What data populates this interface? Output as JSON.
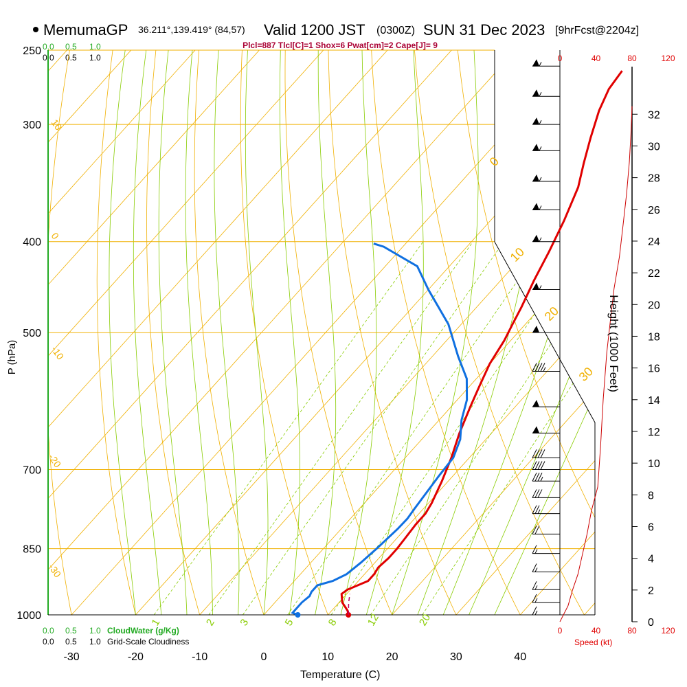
{
  "header": {
    "model": "MemumaGP",
    "location": "36.211°,139.419° (84,57)",
    "valid": "Valid 1200 JST",
    "utc": "(0300Z)",
    "date": "SUN 31 Dec 2023",
    "forecast": "[9hrFcst@2204z]",
    "indices": "Plcl=887 Tlcl[C]=1 Shox=6 Pwat[cm]=2 Cape[J]= 9"
  },
  "colors": {
    "isobar": "#f0b000",
    "mixing": "#88cc00",
    "temperature": "#e00000",
    "dewpoint": "#1070e0",
    "height": "#cc0000",
    "cloud": "#22aa22"
  },
  "labels": {
    "cloud_top_scale": [
      "0.0",
      "0.5",
      "1.0"
    ],
    "cloud_bottom_scale": [
      "0.0",
      "0.5",
      "1.0"
    ],
    "cloudwater_label": "CloudWater (g/Kg)",
    "cloudiness_label": "Grid-Scale Cloudiness",
    "speed_ticks": [
      "0",
      "40",
      "80",
      "120"
    ],
    "speed_label": "Speed (kt)",
    "height_label": "Height (1000 Feet)"
  },
  "chart_data": {
    "type": "line",
    "title": "",
    "xlabel": "Temperature (C)",
    "ylabel": "P (hPa)",
    "xlim": [
      -35,
      46
    ],
    "x_ticks": [
      -30,
      -20,
      -10,
      0,
      10,
      20,
      30,
      40
    ],
    "pressure_ticks": [
      250,
      300,
      400,
      500,
      700,
      850,
      1000
    ],
    "height_ticks": [
      0,
      2,
      4,
      6,
      8,
      10,
      12,
      14,
      16,
      18,
      20,
      22,
      24,
      26,
      28,
      30,
      32
    ],
    "isotherm_labels": [
      -30,
      -20,
      -10,
      0,
      10,
      20,
      30
    ],
    "dry_adiabat_labels": [
      10,
      0,
      -10,
      -20,
      -30
    ],
    "mixing_ratio_labels": [
      "1",
      "2",
      "3",
      "5",
      "8",
      "12",
      "20"
    ],
    "series": [
      {
        "name": "",
        "color": "#e00000",
        "points": [
          [
            13.2,
            1000
          ],
          [
            12.5,
            990
          ],
          [
            10.5,
            970
          ],
          [
            9.2,
            950
          ],
          [
            9.5,
            940
          ],
          [
            10.5,
            930
          ],
          [
            11.5,
            920
          ],
          [
            11.5,
            905
          ],
          [
            11.2,
            890
          ],
          [
            11.5,
            870
          ],
          [
            11.5,
            850
          ],
          [
            11.3,
            830
          ],
          [
            11.0,
            800
          ],
          [
            11.0,
            780
          ],
          [
            10.5,
            760
          ],
          [
            9.0,
            720
          ],
          [
            7.2,
            680
          ],
          [
            5.0,
            640
          ],
          [
            3.0,
            600
          ],
          [
            1.5,
            570
          ],
          [
            0.0,
            540
          ],
          [
            -1.0,
            510
          ],
          [
            -2.0,
            490
          ],
          [
            -3.0,
            470
          ],
          [
            -4.8,
            440
          ],
          [
            -6.5,
            410
          ],
          [
            -8.5,
            380
          ],
          [
            -11.0,
            350
          ],
          [
            -13.5,
            330
          ],
          [
            -16.0,
            310
          ],
          [
            -18.5,
            290
          ],
          [
            -20.0,
            275
          ],
          [
            -20.5,
            263
          ]
        ]
      },
      {
        "name": "",
        "color": "#1070e0",
        "points": [
          [
            5.3,
            1000
          ],
          [
            4.2,
            995
          ],
          [
            4.2,
            970
          ],
          [
            4.5,
            955
          ],
          [
            4.2,
            945
          ],
          [
            4.2,
            930
          ],
          [
            6.0,
            920
          ],
          [
            7.2,
            905
          ],
          [
            7.8,
            880
          ],
          [
            8.3,
            850
          ],
          [
            8.8,
            810
          ],
          [
            8.9,
            790
          ],
          [
            8.6,
            770
          ],
          [
            8.2,
            740
          ],
          [
            7.8,
            710
          ],
          [
            7.5,
            680
          ],
          [
            6.0,
            650
          ],
          [
            3.5,
            620
          ],
          [
            1.5,
            590
          ],
          [
            -1.5,
            560
          ],
          [
            -6.0,
            530
          ],
          [
            -12.0,
            490
          ],
          [
            -20.0,
            450
          ],
          [
            -25.0,
            425
          ],
          [
            -33.0,
            405
          ],
          [
            -35.0,
            402
          ]
        ]
      },
      {
        "name": "",
        "color": "#c00060",
        "dashed": true,
        "points": [
          [
            13.2,
            1000
          ],
          [
            11.5,
            970
          ],
          [
            10.5,
            950
          ]
        ]
      }
    ],
    "height_curve": {
      "name": "",
      "points": [
        [
          0,
          0
        ],
        [
          9,
          1
        ],
        [
          14,
          2
        ],
        [
          20,
          3
        ],
        [
          24,
          4
        ],
        [
          30,
          5.5
        ],
        [
          35,
          7
        ],
        [
          42,
          8.5
        ],
        [
          45,
          11
        ],
        [
          48,
          14
        ],
        [
          52,
          17
        ],
        [
          56,
          19
        ],
        [
          60,
          21
        ],
        [
          66,
          23
        ],
        [
          70,
          25
        ],
        [
          74,
          27
        ],
        [
          77,
          29
        ],
        [
          79,
          31
        ],
        [
          80,
          32.5
        ]
      ]
    },
    "wind_barbs": [
      {
        "p": 260,
        "kt": 55
      },
      {
        "p": 280,
        "kt": 55
      },
      {
        "p": 300,
        "kt": 55
      },
      {
        "p": 320,
        "kt": 55
      },
      {
        "p": 345,
        "kt": 55
      },
      {
        "p": 370,
        "kt": 55
      },
      {
        "p": 400,
        "kt": 55
      },
      {
        "p": 450,
        "kt": 55
      },
      {
        "p": 500,
        "kt": 50
      },
      {
        "p": 550,
        "kt": 45
      },
      {
        "p": 600,
        "kt": 50
      },
      {
        "p": 640,
        "kt": 50
      },
      {
        "p": 680,
        "kt": 40
      },
      {
        "p": 700,
        "kt": 40
      },
      {
        "p": 720,
        "kt": 35
      },
      {
        "p": 750,
        "kt": 30
      },
      {
        "p": 780,
        "kt": 25
      },
      {
        "p": 820,
        "kt": 20
      },
      {
        "p": 860,
        "kt": 15
      },
      {
        "p": 900,
        "kt": 15
      },
      {
        "p": 940,
        "kt": 15
      },
      {
        "p": 970,
        "kt": 15
      },
      {
        "p": 1000,
        "kt": 15
      }
    ],
    "grid": true
  }
}
